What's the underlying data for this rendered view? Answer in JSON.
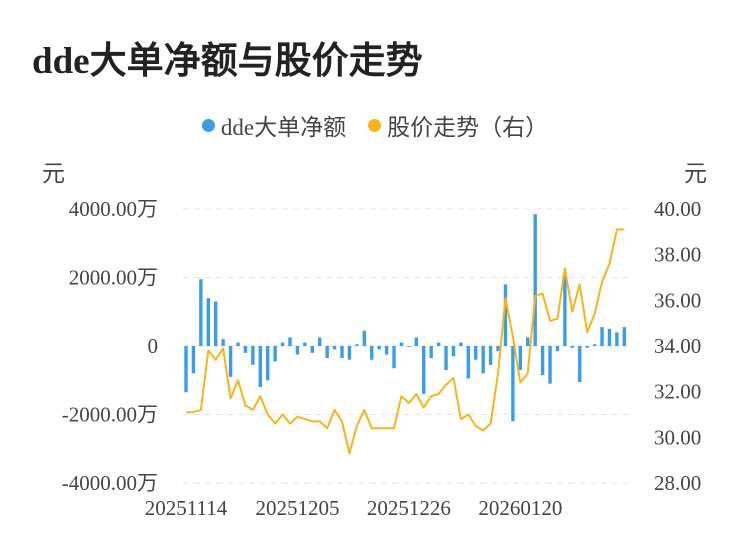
{
  "title": "dde大单净额与股价走势",
  "legend": [
    {
      "label": "dde大单净额",
      "color": "#3a9de6"
    },
    {
      "label": "股价走势（右）",
      "color": "#f5b41a"
    }
  ],
  "units": {
    "left": "元",
    "right": "元"
  },
  "chart_data": {
    "type": "bar+line",
    "x_ticks": [
      "20251114",
      "20251205",
      "20251226",
      "20260120"
    ],
    "x_tick_indices": [
      0,
      15,
      30,
      45
    ],
    "y_left": {
      "ticks": [
        4000,
        2000,
        0,
        -2000,
        -4000
      ],
      "tick_labels": [
        "4000.00万",
        "2000.00万",
        "0",
        "-2000.00万",
        "-4000.00万"
      ],
      "range": [
        -4000,
        4000
      ]
    },
    "y_right": {
      "ticks": [
        40,
        38,
        36,
        34,
        32,
        30,
        28
      ],
      "tick_labels": [
        "40.00",
        "38.00",
        "36.00",
        "34.00",
        "32.00",
        "30.00",
        "28.00"
      ],
      "range": [
        28,
        40
      ]
    },
    "series": [
      {
        "name": "dde大单净额",
        "type": "bar",
        "color": "#3a9de6",
        "unit": "万元",
        "values": [
          -1350,
          -800,
          1950,
          1400,
          1300,
          200,
          -900,
          100,
          -200,
          -550,
          -1200,
          -1000,
          -450,
          100,
          250,
          -250,
          100,
          -200,
          250,
          -350,
          -100,
          -350,
          -400,
          50,
          450,
          -400,
          -100,
          -250,
          -650,
          100,
          0,
          250,
          -1400,
          -350,
          100,
          -700,
          -300,
          100,
          -950,
          -400,
          -800,
          -550,
          -150,
          1800,
          -2200,
          -700,
          250,
          3850,
          -850,
          -1100,
          -150,
          2100,
          -50,
          -1050,
          -50,
          50,
          550,
          500,
          400,
          550
        ]
      },
      {
        "name": "股价走势（右）",
        "type": "line",
        "color": "#f5b41a",
        "unit": "元",
        "values": [
          31.1,
          31.1,
          31.2,
          33.8,
          33.4,
          33.9,
          31.7,
          32.5,
          31.4,
          31.2,
          31.8,
          31.0,
          30.6,
          31.0,
          30.6,
          30.9,
          30.8,
          30.7,
          30.7,
          30.4,
          31.2,
          30.7,
          29.3,
          30.5,
          31.2,
          30.4,
          30.4,
          30.4,
          30.4,
          31.8,
          31.5,
          31.9,
          31.3,
          31.8,
          31.9,
          32.3,
          32.6,
          30.8,
          31.0,
          30.5,
          30.3,
          30.6,
          32.8,
          36.1,
          34.4,
          32.4,
          32.8,
          36.2,
          36.3,
          35.1,
          35.2,
          37.4,
          35.5,
          36.7,
          34.6,
          35.4,
          36.8,
          37.6,
          39.1,
          39.1
        ]
      }
    ],
    "grid": "horizontal dashed",
    "legend_position": "top-center"
  }
}
